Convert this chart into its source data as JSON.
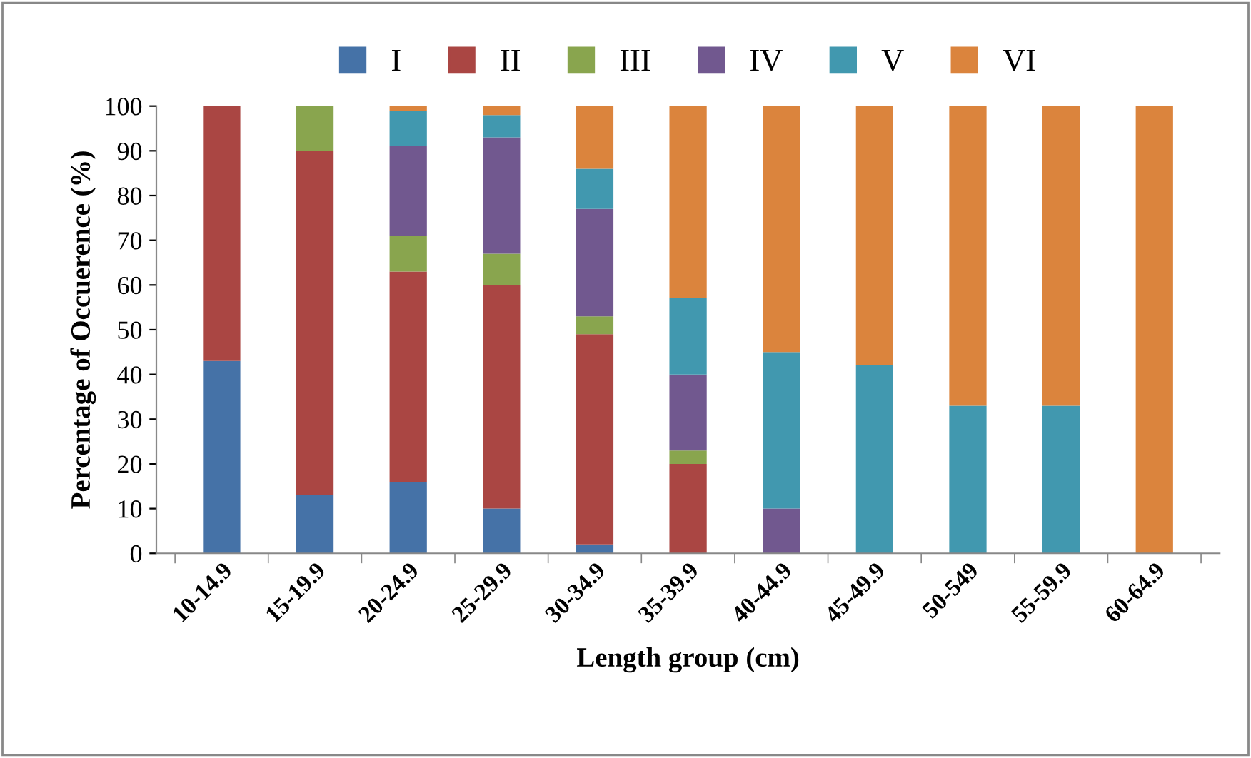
{
  "chart_data": {
    "type": "bar",
    "stacked": true,
    "xlabel": "Length group (cm)",
    "ylabel": "Percentage of Occuerence (%)",
    "categories": [
      "10-14.9",
      "15-19.9",
      "20-24.9",
      "25-29.9",
      "30-34.9",
      "35-39.9",
      "40-44.9",
      "45-49.9",
      "50-549",
      "55-59.9",
      "60-64.9"
    ],
    "series": [
      {
        "name": "I",
        "color": "#4572a7",
        "values": [
          43,
          13,
          16,
          10,
          2,
          0,
          0,
          0,
          0,
          0,
          0
        ]
      },
      {
        "name": "II",
        "color": "#aa4643",
        "values": [
          57,
          77,
          47,
          50,
          47,
          20,
          0,
          0,
          0,
          0,
          0
        ]
      },
      {
        "name": "III",
        "color": "#89a54e",
        "values": [
          0,
          10,
          8,
          7,
          4,
          3,
          0,
          0,
          0,
          0,
          0
        ]
      },
      {
        "name": "IV",
        "color": "#71588f",
        "values": [
          0,
          0,
          20,
          26,
          24,
          17,
          10,
          0,
          0,
          0,
          0
        ]
      },
      {
        "name": "V",
        "color": "#4198af",
        "values": [
          0,
          0,
          8,
          5,
          9,
          17,
          35,
          42,
          33,
          33,
          0
        ]
      },
      {
        "name": "VI",
        "color": "#db843d",
        "values": [
          0,
          0,
          1,
          2,
          14,
          43,
          55,
          58,
          67,
          67,
          100
        ]
      }
    ],
    "ylim": [
      0,
      100
    ],
    "yticks": [
      0,
      10,
      20,
      30,
      40,
      50,
      60,
      70,
      80,
      90,
      100
    ],
    "grid": false,
    "legend": "top"
  }
}
